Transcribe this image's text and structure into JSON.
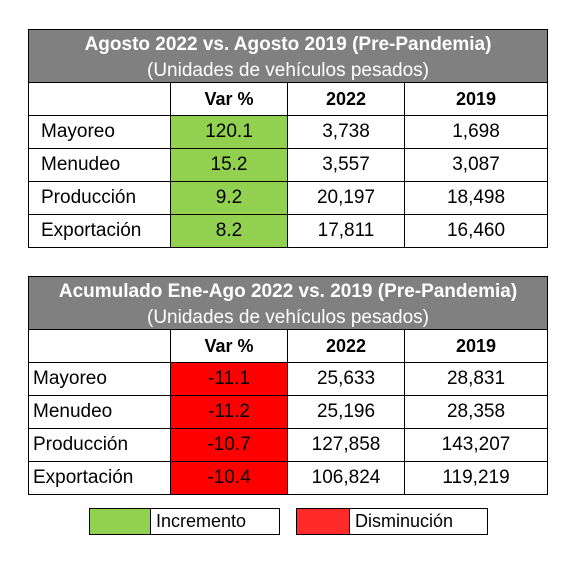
{
  "table1": {
    "title": "Agosto 2022 vs. Agosto 2019 (Pre-Pandemia)",
    "subtitle": "(Unidades de vehículos pesados)",
    "headers": [
      "",
      "Var %",
      "2022",
      "2019"
    ],
    "rows": [
      {
        "label": "Mayoreo",
        "var": "120.1",
        "y2022": "3,738",
        "y2019": "1,698"
      },
      {
        "label": "Menudeo",
        "var": "15.2",
        "y2022": "3,557",
        "y2019": "3,087"
      },
      {
        "label": "Producción",
        "var": "9.2",
        "y2022": "20,197",
        "y2019": "18,498"
      },
      {
        "label": "Exportación",
        "var": "8.2",
        "y2022": "17,811",
        "y2019": "16,460"
      }
    ]
  },
  "table2": {
    "title": "Acumulado Ene-Ago 2022 vs. 2019 (Pre-Pandemia)",
    "subtitle": "(Unidades de vehículos pesados)",
    "headers": [
      "",
      "Var %",
      "2022",
      "2019"
    ],
    "rows": [
      {
        "label": "Mayoreo",
        "var": "-11.1",
        "y2022": "25,633",
        "y2019": "28,831"
      },
      {
        "label": "Menudeo",
        "var": "-11.2",
        "y2022": "25,196",
        "y2019": "28,358"
      },
      {
        "label": "Producción",
        "var": "-10.7",
        "y2022": "127,858",
        "y2019": "143,207"
      },
      {
        "label": "Exportación",
        "var": "-10.4",
        "y2022": "106,824",
        "y2019": "119,219"
      }
    ]
  },
  "legend": {
    "increase_label": "Incremento",
    "decrease_label": "Disminución",
    "increase_color": "#92d050",
    "decrease_color": "#ff0000"
  }
}
